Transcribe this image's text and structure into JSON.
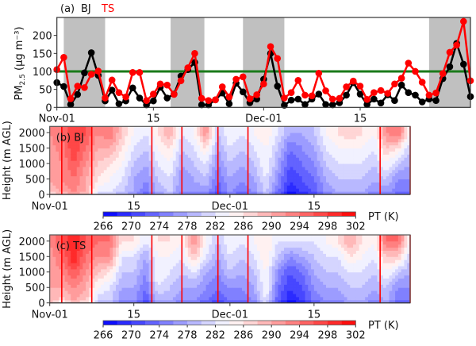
{
  "chart_data": [
    {
      "type": "line",
      "panel_label": "(a)",
      "title_parts": [
        {
          "text": "BJ",
          "color": "#000000"
        },
        {
          "text": "TS",
          "color": "#ff0000"
        }
      ],
      "ylabel": "PM",
      "ylabel_sub": "2.5",
      "ylabel_unit": " (μg m⁻³)",
      "ylim": [
        0,
        250
      ],
      "yticks": [
        "0",
        "50",
        "100",
        "150",
        "200"
      ],
      "xlim": [
        0,
        60
      ],
      "xticks": [
        {
          "day": 0,
          "label": "Nov-01"
        },
        {
          "day": 14,
          "label": "15"
        },
        {
          "day": 30,
          "label": "Dec-01"
        },
        {
          "day": 44,
          "label": "15"
        }
      ],
      "threshold": {
        "value": 100,
        "color": "#1a7a1a"
      },
      "shaded_periods": [
        [
          1,
          7
        ],
        [
          16.5,
          21.4
        ],
        [
          27,
          33
        ],
        [
          54,
          60
        ]
      ],
      "series": [
        {
          "name": "BJ",
          "color": "#000000",
          "values": [
            69,
            58,
            8,
            36,
            96,
            152,
            89,
            18,
            48,
            10,
            18,
            54,
            26,
            7,
            18,
            56,
            26,
            37,
            87,
            105,
            125,
            7,
            7,
            21,
            40,
            10,
            67,
            43,
            13,
            23,
            78,
            150,
            59,
            6,
            20,
            23,
            8,
            23,
            37,
            8,
            7,
            13,
            34,
            69,
            37,
            8,
            23,
            12,
            35,
            19,
            62,
            41,
            34,
            15,
            23,
            19,
            80,
            113,
            178,
            120,
            30
          ]
        },
        {
          "name": "TS",
          "color": "#ff0000",
          "values": [
            105,
            139,
            24,
            59,
            55,
            92,
            101,
            26,
            76,
            41,
            29,
            97,
            97,
            19,
            37,
            65,
            62,
            36,
            74,
            110,
            150,
            25,
            19,
            21,
            57,
            29,
            78,
            85,
            24,
            35,
            65,
            169,
            136,
            26,
            41,
            75,
            34,
            32,
            95,
            46,
            23,
            25,
            57,
            73,
            59,
            22,
            41,
            47,
            39,
            65,
            81,
            123,
            100,
            70,
            34,
            40,
            94,
            153,
            173,
            239,
            74
          ]
        }
      ]
    },
    {
      "type": "heatmap",
      "panel_label": "(b) BJ",
      "ylabel": "Height (m AGL)",
      "yticks": [
        "0",
        "500",
        "1000",
        "1500",
        "2000"
      ],
      "ylim": [
        0,
        2200
      ],
      "xticks": [
        {
          "day": 0,
          "label": "Nov-01"
        },
        {
          "day": 14,
          "label": "15"
        },
        {
          "day": 30,
          "label": "Dec-01"
        },
        {
          "day": 44,
          "label": "15"
        }
      ],
      "x_days": [
        0,
        2,
        4,
        6,
        8,
        10,
        12,
        14,
        16,
        18,
        20,
        22,
        24,
        26,
        28,
        30,
        32,
        34,
        36,
        38,
        40,
        42,
        44,
        46,
        48,
        50,
        52,
        54,
        56,
        58,
        60
      ],
      "heights": [
        0,
        500,
        1000,
        1500,
        2000
      ],
      "pt": [
        [
          288,
          290,
          290,
          291,
          292
        ],
        [
          290,
          292,
          292,
          293,
          294
        ],
        [
          292,
          294,
          296,
          298,
          298
        ],
        [
          290,
          290,
          292,
          294,
          296
        ],
        [
          282,
          286,
          288,
          290,
          292
        ],
        [
          282,
          284,
          286,
          290,
          294
        ],
        [
          280,
          282,
          284,
          286,
          288
        ],
        [
          278,
          278,
          280,
          282,
          284
        ],
        [
          274,
          276,
          278,
          280,
          282
        ],
        [
          278,
          280,
          282,
          284,
          286
        ],
        [
          280,
          282,
          284,
          286,
          290
        ],
        [
          276,
          276,
          278,
          280,
          282
        ],
        [
          276,
          278,
          280,
          282,
          284
        ],
        [
          276,
          280,
          282,
          286,
          292
        ],
        [
          272,
          274,
          276,
          278,
          280
        ],
        [
          276,
          278,
          280,
          282,
          284
        ],
        [
          274,
          276,
          278,
          280,
          282
        ],
        [
          276,
          278,
          280,
          282,
          284
        ],
        [
          280,
          282,
          284,
          284,
          286
        ],
        [
          274,
          276,
          278,
          280,
          282
        ],
        [
          268,
          270,
          272,
          274,
          278
        ],
        [
          270,
          272,
          274,
          276,
          278
        ],
        [
          272,
          274,
          276,
          278,
          280
        ],
        [
          276,
          278,
          280,
          282,
          284
        ],
        [
          278,
          280,
          282,
          284,
          286
        ],
        [
          278,
          280,
          282,
          284,
          288
        ],
        [
          278,
          280,
          282,
          284,
          286
        ],
        [
          276,
          278,
          280,
          282,
          284
        ],
        [
          276,
          280,
          284,
          288,
          292
        ],
        [
          274,
          276,
          280,
          286,
          294
        ],
        [
          274,
          276,
          278,
          280,
          284
        ]
      ],
      "event_lines_days": [
        2,
        7,
        17,
        22,
        28,
        33,
        55,
        60
      ],
      "colorbar": {
        "label": "PT (K)",
        "min": 266,
        "max": 302,
        "ticks": [
          "266",
          "270",
          "274",
          "278",
          "282",
          "286",
          "290",
          "294",
          "298",
          "302"
        ]
      }
    },
    {
      "type": "heatmap",
      "panel_label": "(c) TS",
      "ylabel": "Height (m AGL)",
      "yticks": [
        "0",
        "500",
        "1000",
        "1500",
        "2000"
      ],
      "ylim": [
        0,
        2200
      ],
      "xticks": [
        {
          "day": 0,
          "label": "Nov-01"
        },
        {
          "day": 14,
          "label": "15"
        },
        {
          "day": 30,
          "label": "Dec-01"
        },
        {
          "day": 44,
          "label": "15"
        }
      ],
      "x_days": [
        0,
        2,
        4,
        6,
        8,
        10,
        12,
        14,
        16,
        18,
        20,
        22,
        24,
        26,
        28,
        30,
        32,
        34,
        36,
        38,
        40,
        42,
        44,
        46,
        48,
        50,
        52,
        54,
        56,
        58,
        60
      ],
      "heights": [
        0,
        500,
        1000,
        1500,
        2000
      ],
      "pt": [
        [
          290,
          290,
          290,
          291,
          292
        ],
        [
          286,
          290,
          292,
          294,
          296
        ],
        [
          290,
          292,
          296,
          300,
          300
        ],
        [
          288,
          290,
          292,
          294,
          296
        ],
        [
          280,
          284,
          288,
          292,
          294
        ],
        [
          280,
          282,
          286,
          292,
          294
        ],
        [
          276,
          278,
          280,
          282,
          286
        ],
        [
          276,
          278,
          280,
          282,
          286
        ],
        [
          272,
          274,
          276,
          278,
          282
        ],
        [
          278,
          282,
          284,
          284,
          286
        ],
        [
          278,
          280,
          282,
          284,
          286
        ],
        [
          276,
          278,
          280,
          282,
          284
        ],
        [
          276,
          278,
          282,
          288,
          292
        ],
        [
          274,
          276,
          278,
          282,
          284
        ],
        [
          272,
          274,
          276,
          278,
          280
        ],
        [
          274,
          276,
          280,
          282,
          284
        ],
        [
          274,
          276,
          278,
          280,
          282
        ],
        [
          276,
          278,
          280,
          282,
          284
        ],
        [
          282,
          284,
          284,
          286,
          286
        ],
        [
          272,
          274,
          276,
          280,
          282
        ],
        [
          268,
          270,
          272,
          276,
          282
        ],
        [
          270,
          272,
          274,
          278,
          282
        ],
        [
          274,
          276,
          278,
          280,
          282
        ],
        [
          276,
          278,
          280,
          282,
          284
        ],
        [
          276,
          278,
          280,
          282,
          286
        ],
        [
          278,
          280,
          282,
          286,
          290
        ],
        [
          278,
          280,
          282,
          284,
          286
        ],
        [
          276,
          278,
          280,
          282,
          284
        ],
        [
          278,
          280,
          284,
          288,
          294
        ],
        [
          274,
          276,
          280,
          288,
          294
        ],
        [
          274,
          276,
          278,
          280,
          284
        ]
      ],
      "event_lines_days": [
        2,
        7,
        17,
        22,
        28,
        33,
        55,
        60
      ],
      "colorbar": {
        "label": "PT (K)",
        "min": 266,
        "max": 302,
        "ticks": [
          "266",
          "270",
          "274",
          "278",
          "282",
          "286",
          "290",
          "294",
          "298",
          "302"
        ]
      }
    }
  ]
}
